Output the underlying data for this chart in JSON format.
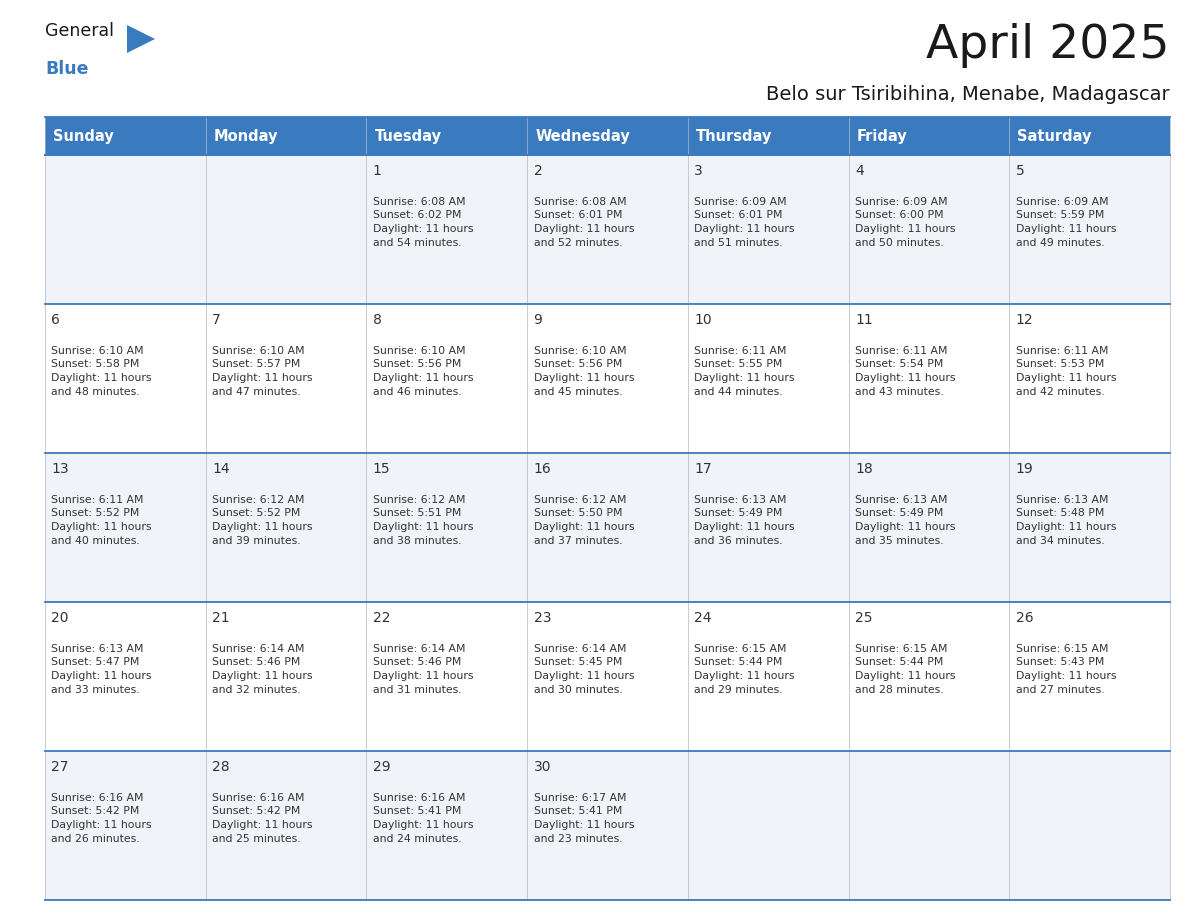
{
  "title": "April 2025",
  "subtitle": "Belo sur Tsiribihina, Menabe, Madagascar",
  "days_of_week": [
    "Sunday",
    "Monday",
    "Tuesday",
    "Wednesday",
    "Thursday",
    "Friday",
    "Saturday"
  ],
  "header_bg": "#3a7abf",
  "header_text": "#ffffff",
  "cell_bg_odd": "#f0f4f8",
  "cell_bg_even": "#ffffff",
  "cell_text": "#333333",
  "grid_line": "#3a7abf",
  "title_color": "#1a1a1a",
  "subtitle_color": "#1a1a1a",
  "logo_general_color": "#1a1a1a",
  "logo_blue_color": "#3a7abf",
  "logo_triangle_color": "#3a7abf",
  "calendar": [
    [
      {
        "day": "",
        "sunrise": "",
        "sunset": "",
        "daylight_mins": ""
      },
      {
        "day": "",
        "sunrise": "",
        "sunset": "",
        "daylight_mins": ""
      },
      {
        "day": "1",
        "sunrise": "6:08 AM",
        "sunset": "6:02 PM",
        "daylight_mins": "54"
      },
      {
        "day": "2",
        "sunrise": "6:08 AM",
        "sunset": "6:01 PM",
        "daylight_mins": "52"
      },
      {
        "day": "3",
        "sunrise": "6:09 AM",
        "sunset": "6:01 PM",
        "daylight_mins": "51"
      },
      {
        "day": "4",
        "sunrise": "6:09 AM",
        "sunset": "6:00 PM",
        "daylight_mins": "50"
      },
      {
        "day": "5",
        "sunrise": "6:09 AM",
        "sunset": "5:59 PM",
        "daylight_mins": "49"
      }
    ],
    [
      {
        "day": "6",
        "sunrise": "6:10 AM",
        "sunset": "5:58 PM",
        "daylight_mins": "48"
      },
      {
        "day": "7",
        "sunrise": "6:10 AM",
        "sunset": "5:57 PM",
        "daylight_mins": "47"
      },
      {
        "day": "8",
        "sunrise": "6:10 AM",
        "sunset": "5:56 PM",
        "daylight_mins": "46"
      },
      {
        "day": "9",
        "sunrise": "6:10 AM",
        "sunset": "5:56 PM",
        "daylight_mins": "45"
      },
      {
        "day": "10",
        "sunrise": "6:11 AM",
        "sunset": "5:55 PM",
        "daylight_mins": "44"
      },
      {
        "day": "11",
        "sunrise": "6:11 AM",
        "sunset": "5:54 PM",
        "daylight_mins": "43"
      },
      {
        "day": "12",
        "sunrise": "6:11 AM",
        "sunset": "5:53 PM",
        "daylight_mins": "42"
      }
    ],
    [
      {
        "day": "13",
        "sunrise": "6:11 AM",
        "sunset": "5:52 PM",
        "daylight_mins": "40"
      },
      {
        "day": "14",
        "sunrise": "6:12 AM",
        "sunset": "5:52 PM",
        "daylight_mins": "39"
      },
      {
        "day": "15",
        "sunrise": "6:12 AM",
        "sunset": "5:51 PM",
        "daylight_mins": "38"
      },
      {
        "day": "16",
        "sunrise": "6:12 AM",
        "sunset": "5:50 PM",
        "daylight_mins": "37"
      },
      {
        "day": "17",
        "sunrise": "6:13 AM",
        "sunset": "5:49 PM",
        "daylight_mins": "36"
      },
      {
        "day": "18",
        "sunrise": "6:13 AM",
        "sunset": "5:49 PM",
        "daylight_mins": "35"
      },
      {
        "day": "19",
        "sunrise": "6:13 AM",
        "sunset": "5:48 PM",
        "daylight_mins": "34"
      }
    ],
    [
      {
        "day": "20",
        "sunrise": "6:13 AM",
        "sunset": "5:47 PM",
        "daylight_mins": "33"
      },
      {
        "day": "21",
        "sunrise": "6:14 AM",
        "sunset": "5:46 PM",
        "daylight_mins": "32"
      },
      {
        "day": "22",
        "sunrise": "6:14 AM",
        "sunset": "5:46 PM",
        "daylight_mins": "31"
      },
      {
        "day": "23",
        "sunrise": "6:14 AM",
        "sunset": "5:45 PM",
        "daylight_mins": "30"
      },
      {
        "day": "24",
        "sunrise": "6:15 AM",
        "sunset": "5:44 PM",
        "daylight_mins": "29"
      },
      {
        "day": "25",
        "sunrise": "6:15 AM",
        "sunset": "5:44 PM",
        "daylight_mins": "28"
      },
      {
        "day": "26",
        "sunrise": "6:15 AM",
        "sunset": "5:43 PM",
        "daylight_mins": "27"
      }
    ],
    [
      {
        "day": "27",
        "sunrise": "6:16 AM",
        "sunset": "5:42 PM",
        "daylight_mins": "26"
      },
      {
        "day": "28",
        "sunrise": "6:16 AM",
        "sunset": "5:42 PM",
        "daylight_mins": "25"
      },
      {
        "day": "29",
        "sunrise": "6:16 AM",
        "sunset": "5:41 PM",
        "daylight_mins": "24"
      },
      {
        "day": "30",
        "sunrise": "6:17 AM",
        "sunset": "5:41 PM",
        "daylight_mins": "23"
      },
      {
        "day": "",
        "sunrise": "",
        "sunset": "",
        "daylight_mins": ""
      },
      {
        "day": "",
        "sunrise": "",
        "sunset": "",
        "daylight_mins": ""
      },
      {
        "day": "",
        "sunrise": "",
        "sunset": "",
        "daylight_mins": ""
      }
    ]
  ]
}
